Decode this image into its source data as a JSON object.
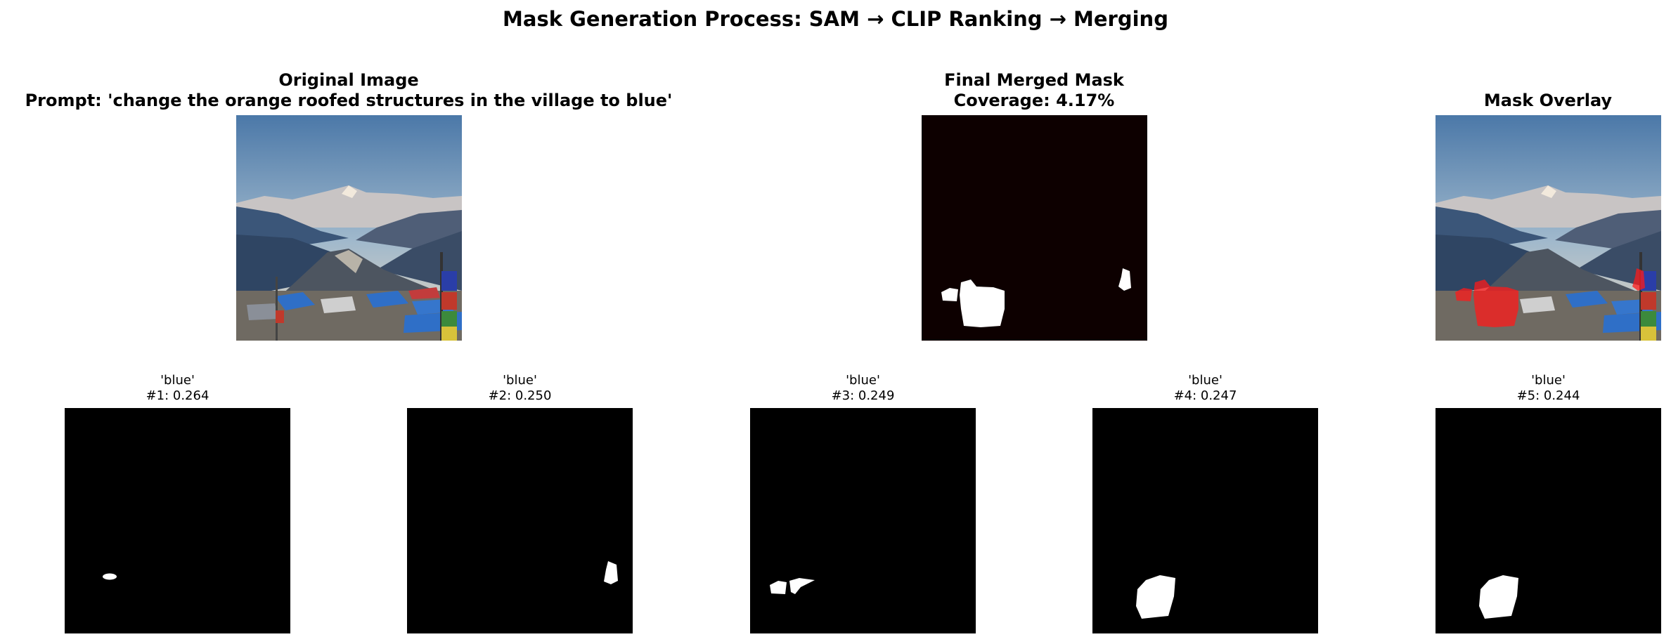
{
  "title": "Mask Generation Process: SAM → CLIP Ranking → Merging",
  "panels": {
    "original": {
      "title": "Original Image",
      "prompt": "Prompt: 'change the orange roofed structures in the village to blue'"
    },
    "merged": {
      "title": "Final Merged Mask",
      "coverage": "Coverage: 4.17%"
    },
    "overlay": {
      "title": "Mask Overlay"
    }
  },
  "masks": [
    {
      "label": "'blue'",
      "score": "#1: 0.264"
    },
    {
      "label": "'blue'",
      "score": "#2: 0.250"
    },
    {
      "label": "'blue'",
      "score": "#3: 0.249"
    },
    {
      "label": "'blue'",
      "score": "#4: 0.247"
    },
    {
      "label": "'blue'",
      "score": "#5: 0.244"
    }
  ],
  "colors": {
    "merged_background": "#0d0000",
    "mask_background": "#000000",
    "mask_fill": "#ffffff",
    "overlay_highlight": "#ff1a1a"
  }
}
